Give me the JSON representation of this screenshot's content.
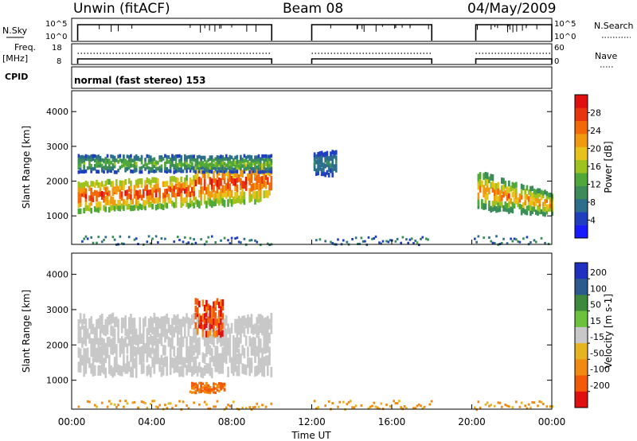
{
  "header": {
    "station": "Unwin (fitACF)",
    "beam": "Beam 08",
    "date": "04/May/2009"
  },
  "top_panels": {
    "nsky_label": "N.Sky",
    "nsky_ticks": [
      "10^5",
      "10^0"
    ],
    "nsearch_label": "N.Search",
    "freq_label_1": "Freq.",
    "freq_label_2": "[MHz]",
    "freq_ticks": [
      "18",
      "8"
    ],
    "nave_ticks": [
      "60",
      "0"
    ],
    "nave_label": "Nave",
    "cpid_label": "CPID",
    "cpid_text": "normal (fast stereo) 153"
  },
  "x_axis": {
    "label": "Time UT",
    "ticks": [
      "00:00",
      "04:00",
      "08:00",
      "12:00",
      "16:00",
      "20:00",
      "00:00"
    ]
  },
  "power_panel": {
    "ylabel": "Slant Range [km]",
    "yticks": [
      "1000",
      "2000",
      "3000",
      "4000"
    ],
    "colorbar_label": "Power [dB]",
    "colorbar_ticks": [
      "4",
      "8",
      "12",
      "16",
      "20",
      "24",
      "28"
    ],
    "colors": [
      "#1a1aff",
      "#1f3fbf",
      "#2d6e8c",
      "#3c8c5a",
      "#4fa83a",
      "#9ec21f",
      "#e6c21a",
      "#f09a10",
      "#f26a08",
      "#e83510",
      "#e01010"
    ]
  },
  "velocity_panel": {
    "ylabel": "Slant Range [km]",
    "yticks": [
      "1000",
      "2000",
      "3000",
      "4000"
    ],
    "colorbar_label": "Velocity [m s-1]",
    "colorbar_ticks": [
      "200",
      "100",
      "50",
      "15",
      "-15",
      "-50",
      "-100",
      "-200"
    ],
    "colors": [
      "#1f2fbf",
      "#2c5a8c",
      "#3d8a3d",
      "#6cc23c",
      "#c8c8c8",
      "#e6b420",
      "#f08a10",
      "#f25a08",
      "#e01010"
    ]
  },
  "chart_data": {
    "type": "heatmap",
    "title": "Unwin (fitACF) Beam 08 04/May/2009",
    "xlabel": "Time UT",
    "ylabel": "Slant Range [km]",
    "x_range_hours": [
      0,
      24
    ],
    "y_range_km": [
      180,
      4600
    ],
    "data_gaps_hours": [
      [
        10,
        12
      ],
      [
        18,
        20
      ]
    ],
    "panels": [
      {
        "name": "Power [dB]",
        "colorbar_range": [
          0,
          30
        ],
        "features": [
          {
            "label": "main echo band",
            "t_start": 0.3,
            "t_end": 10.0,
            "range_km": [
              1050,
              1900
            ],
            "power_db": [
              12,
              30
            ]
          },
          {
            "label": "upper band",
            "t_start": 0.3,
            "t_end": 10.0,
            "range_km": [
              2200,
              2700
            ],
            "power_db": [
              4,
              16
            ]
          },
          {
            "label": "late-day band",
            "t_start": 20.2,
            "t_end": 24.0,
            "range_km": [
              1100,
              2200
            ],
            "power_db": [
              8,
              26
            ]
          },
          {
            "label": "midday patch",
            "t_start": 12.0,
            "t_end": 13.2,
            "range_km": [
              2100,
              2800
            ],
            "power_db": [
              4,
              10
            ]
          }
        ]
      },
      {
        "name": "Velocity [m s-1]",
        "colorbar_range": [
          -200,
          200
        ],
        "features": [
          {
            "label": "low-velocity band",
            "t_start": 0.3,
            "t_end": 10.0,
            "range_km": [
              1050,
              2700
            ],
            "velocity": [
              -15,
              15
            ]
          },
          {
            "label": "negative patch",
            "t_start": 6.1,
            "t_end": 7.5,
            "range_km": [
              2200,
              3200
            ],
            "velocity": [
              -200,
              -50
            ]
          },
          {
            "label": "negative patch low",
            "t_start": 5.8,
            "t_end": 7.6,
            "range_km": [
              600,
              900
            ],
            "velocity": [
              -100,
              -50
            ]
          }
        ]
      }
    ]
  }
}
